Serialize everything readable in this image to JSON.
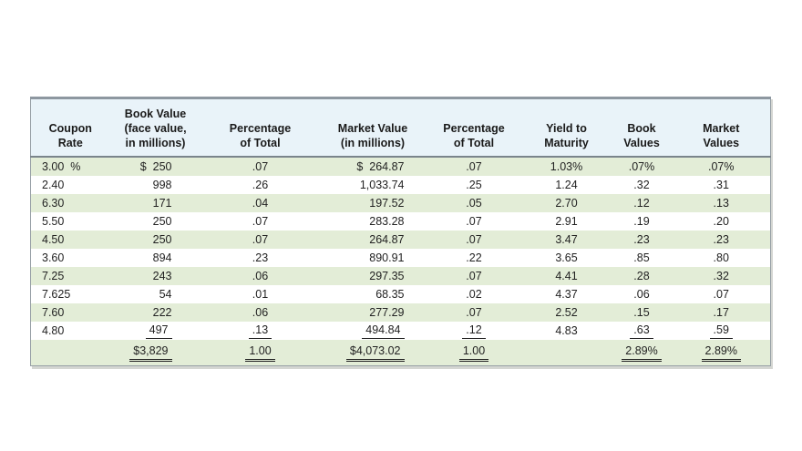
{
  "page": {
    "background_color": "#ffffff"
  },
  "table": {
    "description": "Bond portfolio book value and market value table",
    "colors": {
      "header_bg": "#e9f3f9",
      "stripe_row_bg": "#e3edd7",
      "plain_row_bg": "#ffffff",
      "border": "#97a0a6",
      "text": "#222222"
    },
    "columns": [
      {
        "id": "coupon-rate",
        "lines": [
          "Coupon",
          "Rate"
        ]
      },
      {
        "id": "book-value",
        "lines": [
          "Book Value",
          "(face value,",
          "in millions)"
        ]
      },
      {
        "id": "pct-of-total-book",
        "lines": [
          "Percentage",
          "of Total"
        ]
      },
      {
        "id": "market-value",
        "lines": [
          "Market Value",
          "(in millions)"
        ]
      },
      {
        "id": "pct-of-total-market",
        "lines": [
          "Percentage",
          "of Total"
        ]
      },
      {
        "id": "yield-to-maturity",
        "lines": [
          "Yield to",
          "Maturity"
        ]
      },
      {
        "id": "book-values",
        "lines": [
          "Book",
          "Values"
        ]
      },
      {
        "id": "market-values",
        "lines": [
          "Market",
          "Values"
        ]
      }
    ],
    "rows": [
      [
        "3.00  %",
        "$  250",
        ".07",
        "$  264.87",
        ".07",
        "1.03%",
        ".07%",
        ".07%"
      ],
      [
        "2.40",
        "998",
        ".26",
        "1,033.74",
        ".25",
        "1.24",
        ".32",
        ".31"
      ],
      [
        "6.30",
        "171",
        ".04",
        "197.52",
        ".05",
        "2.70",
        ".12",
        ".13"
      ],
      [
        "5.50",
        "250",
        ".07",
        "283.28",
        ".07",
        "2.91",
        ".19",
        ".20"
      ],
      [
        "4.50",
        "250",
        ".07",
        "264.87",
        ".07",
        "3.47",
        ".23",
        ".23"
      ],
      [
        "3.60",
        "894",
        ".23",
        "890.91",
        ".22",
        "3.65",
        ".85",
        ".80"
      ],
      [
        "7.25",
        "243",
        ".06",
        "297.35",
        ".07",
        "4.41",
        ".28",
        ".32"
      ],
      [
        "7.625",
        "54",
        ".01",
        "68.35",
        ".02",
        "4.37",
        ".06",
        ".07"
      ],
      [
        "7.60",
        "222",
        ".06",
        "277.29",
        ".07",
        "2.52",
        ".15",
        ".17"
      ],
      [
        "4.80",
        {
          "t": "497",
          "u": 1
        },
        {
          "t": ".13",
          "u": 1
        },
        {
          "t": "494.84",
          "u": 1
        },
        {
          "t": ".12",
          "u": 1
        },
        "4.83",
        {
          "t": ".63",
          "u": 1
        },
        {
          "t": ".59",
          "u": 1
        }
      ]
    ],
    "totals": [
      "",
      {
        "t": "$3,829",
        "u": 2
      },
      {
        "t": "1.00",
        "u": 2
      },
      {
        "t": "$4,073.02",
        "u": 2
      },
      {
        "t": "1.00",
        "u": 2
      },
      "",
      {
        "t": "2.89%",
        "u": 2
      },
      {
        "t": "2.89%",
        "u": 2
      }
    ]
  }
}
